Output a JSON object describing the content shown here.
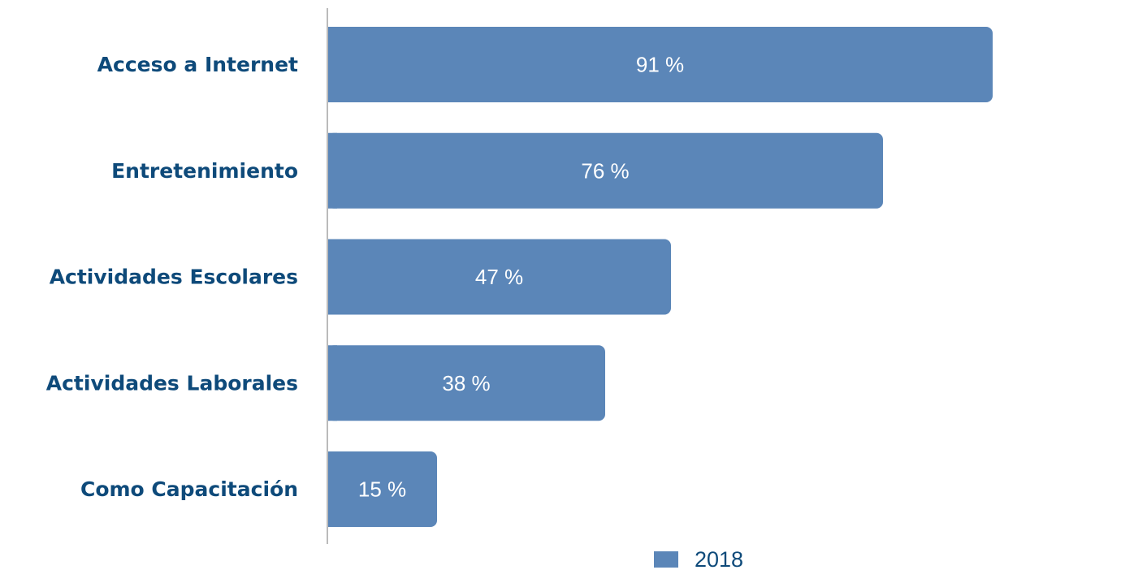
{
  "chart_data": {
    "type": "bar",
    "orientation": "horizontal",
    "categories": [
      "Acceso a Internet",
      "Entretenimiento",
      "Actividades Escolares",
      "Actividades Laborales",
      "Como Capacitación"
    ],
    "series": [
      {
        "name": "2018",
        "values": [
          91,
          76,
          47,
          38,
          15
        ],
        "value_labels": [
          "91 %",
          "76 %",
          "47 %",
          "38 %",
          "15 %"
        ],
        "color": "#5B86B8"
      }
    ],
    "xlim": [
      0,
      100
    ],
    "grid": false,
    "legend": "bottom-center"
  },
  "colors": {
    "bar": "#5B86B8",
    "category_text": "#0E4A7A",
    "value_text": "#ffffff",
    "legend_text": "#0E4A7A",
    "axis": "#BBBBBB"
  }
}
